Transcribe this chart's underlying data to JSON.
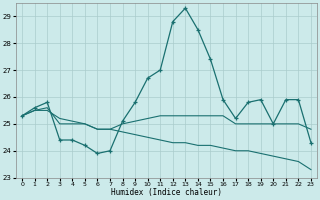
{
  "xlabel": "Humidex (Indice chaleur)",
  "bg_color": "#cceaea",
  "line_color": "#1a7070",
  "grid_color": "#aacccc",
  "xlim": [
    -0.5,
    23.5
  ],
  "ylim": [
    23,
    29.5
  ],
  "yticks": [
    23,
    24,
    25,
    26,
    27,
    28,
    29
  ],
  "xticks": [
    0,
    1,
    2,
    3,
    4,
    5,
    6,
    7,
    8,
    9,
    10,
    11,
    12,
    13,
    14,
    15,
    16,
    17,
    18,
    19,
    20,
    21,
    22,
    23
  ],
  "series": [
    {
      "x": [
        0,
        1,
        2,
        3,
        4,
        5,
        6,
        7,
        8,
        9,
        10,
        11,
        12,
        13,
        14,
        15,
        16,
        17,
        18,
        19,
        20,
        21,
        22,
        23
      ],
      "y": [
        25.3,
        25.5,
        25.5,
        25.2,
        25.1,
        25.0,
        24.8,
        24.8,
        24.7,
        24.6,
        24.5,
        24.4,
        24.3,
        24.3,
        24.2,
        24.2,
        24.1,
        24.0,
        24.0,
        23.9,
        23.8,
        23.7,
        23.6,
        23.3
      ],
      "has_markers": false
    },
    {
      "x": [
        0,
        1,
        2,
        3,
        4,
        5,
        6,
        7,
        8,
        9,
        10,
        11,
        12,
        13,
        14,
        15,
        16,
        17,
        18,
        19,
        20,
        21,
        22,
        23
      ],
      "y": [
        25.3,
        25.5,
        25.6,
        25.0,
        25.0,
        25.0,
        24.8,
        24.8,
        25.0,
        25.1,
        25.2,
        25.3,
        25.3,
        25.3,
        25.3,
        25.3,
        25.3,
        25.0,
        25.0,
        25.0,
        25.0,
        25.0,
        25.0,
        24.8
      ],
      "has_markers": false
    },
    {
      "x": [
        0,
        1,
        2,
        3,
        4,
        5,
        6,
        7,
        8,
        9,
        10,
        11,
        12,
        13,
        14,
        15,
        16,
        17,
        18,
        19,
        20,
        21,
        22,
        23
      ],
      "y": [
        25.3,
        25.6,
        25.8,
        24.4,
        24.4,
        24.2,
        23.9,
        24.0,
        25.1,
        25.8,
        26.7,
        27.0,
        28.8,
        29.3,
        28.5,
        27.4,
        25.9,
        25.2,
        25.8,
        25.9,
        25.0,
        25.9,
        25.9,
        24.3
      ],
      "has_markers": true
    }
  ]
}
